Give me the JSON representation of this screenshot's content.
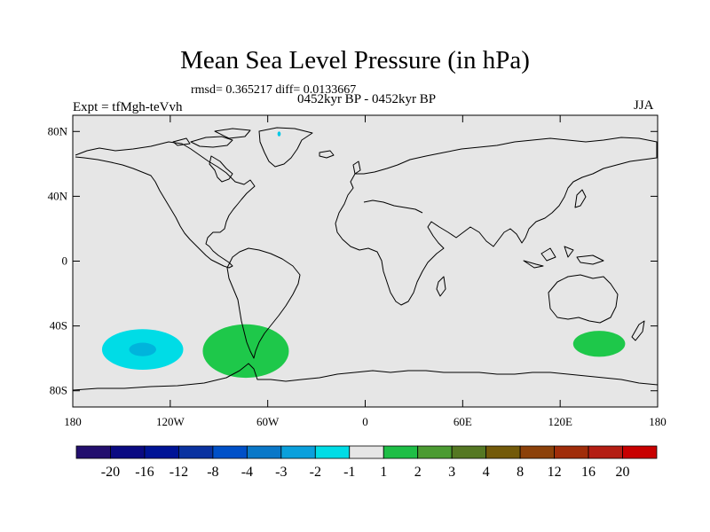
{
  "figure": {
    "title": "Mean Sea Level Pressure (in hPa)",
    "stats": "rmsd= 0.365217 diff= 0.0133667",
    "period": "0452kyr BP - 0452kyr BP",
    "experiment": "Expt = tfMgh-teVvh",
    "season": "JJA"
  },
  "map": {
    "projection": "cylindrical-equidistant",
    "lon_range": [
      -180,
      180
    ],
    "lat_range": [
      -90,
      90
    ],
    "background_color": "#e6e6e6",
    "coastline_color": "#000000",
    "lat_ticks": [
      {
        "label": "80N",
        "value": 80
      },
      {
        "label": "40N",
        "value": 40
      },
      {
        "label": "0",
        "value": 0
      },
      {
        "label": "40S",
        "value": -40
      },
      {
        "label": "80S",
        "value": -80
      }
    ],
    "lon_ticks": [
      {
        "label": "180",
        "value": -180
      },
      {
        "label": "120W",
        "value": -120
      },
      {
        "label": "60W",
        "value": -60
      },
      {
        "label": "0",
        "value": 0
      },
      {
        "label": "60E",
        "value": 60
      },
      {
        "label": "120E",
        "value": 120
      },
      {
        "label": "180",
        "value": 180
      }
    ],
    "anomalies": [
      {
        "region": "south-pacific",
        "sign": "negative",
        "lon_range": [
          -162,
          -112
        ],
        "lat_range": [
          -67,
          -42
        ],
        "color": "#00dce6",
        "core_color": "#00b4dc"
      },
      {
        "region": "drake-passage",
        "sign": "positive",
        "lon_range": [
          -100,
          -47
        ],
        "lat_range": [
          -72,
          -39
        ],
        "color": "#1ec84a"
      },
      {
        "region": "south-of-australia",
        "sign": "positive",
        "lon_range": [
          128,
          160
        ],
        "lat_range": [
          -59,
          -43
        ],
        "color": "#1ec84a"
      },
      {
        "region": "greenland",
        "sign": "negative",
        "lon_range": [
          -54,
          -52
        ],
        "lat_range": [
          77,
          80
        ],
        "color": "#00c8e6"
      }
    ]
  },
  "colorbar": {
    "labels": [
      "-20",
      "-16",
      "-12",
      "-8",
      "-4",
      "-3",
      "-2",
      "-1",
      "1",
      "2",
      "3",
      "4",
      "8",
      "12",
      "16",
      "20"
    ],
    "colors": [
      "#230f6e",
      "#0a0a82",
      "#001496",
      "#0a32a0",
      "#0050c8",
      "#0a78c8",
      "#0aa0dc",
      "#00dce6",
      "#e6e6e6",
      "#1ebe46",
      "#4b9b32",
      "#557823",
      "#735a0a",
      "#8c410a",
      "#a02d0a",
      "#b41e14",
      "#c80000"
    ]
  }
}
